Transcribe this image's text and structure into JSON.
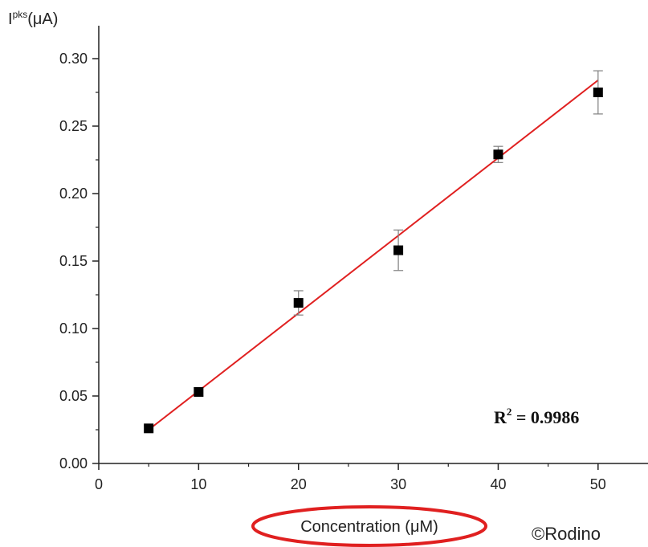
{
  "chart_data": {
    "type": "scatter",
    "title": "",
    "ylabel_main": "I",
    "ylabel_sup": "pks",
    "ylabel_unit": "(μA)",
    "xlabel": "Concentration (μM)",
    "xlim": [
      0,
      55
    ],
    "ylim": [
      0,
      0.3
    ],
    "x_ticks": [
      0,
      10,
      20,
      30,
      40,
      50
    ],
    "y_ticks": [
      0.0,
      0.05,
      0.1,
      0.15,
      0.2,
      0.25,
      0.3
    ],
    "x_tick_labels": [
      "0",
      "10",
      "20",
      "30",
      "40",
      "50"
    ],
    "y_tick_labels": [
      "0.00",
      "0.05",
      "0.10",
      "0.15",
      "0.20",
      "0.25",
      "0.30"
    ],
    "grid": false,
    "series": [
      {
        "x": [
          5,
          10,
          20,
          30,
          40,
          50
        ],
        "y": [
          0.026,
          0.053,
          0.119,
          0.158,
          0.229,
          0.275
        ],
        "error": [
          0.002,
          0.003,
          0.009,
          0.015,
          0.006,
          0.016
        ],
        "marker": "square",
        "color": "#000000"
      }
    ],
    "fit_line": {
      "x": [
        5,
        50
      ],
      "y": [
        0.025,
        0.284
      ],
      "color": "#e02020"
    },
    "annotation": {
      "r2_label": "R",
      "r2_sup": "2",
      "r2_value": " = 0.9986"
    }
  },
  "highlight": {
    "color": "#e02020"
  },
  "watermark": {
    "text": "©Rodino"
  }
}
